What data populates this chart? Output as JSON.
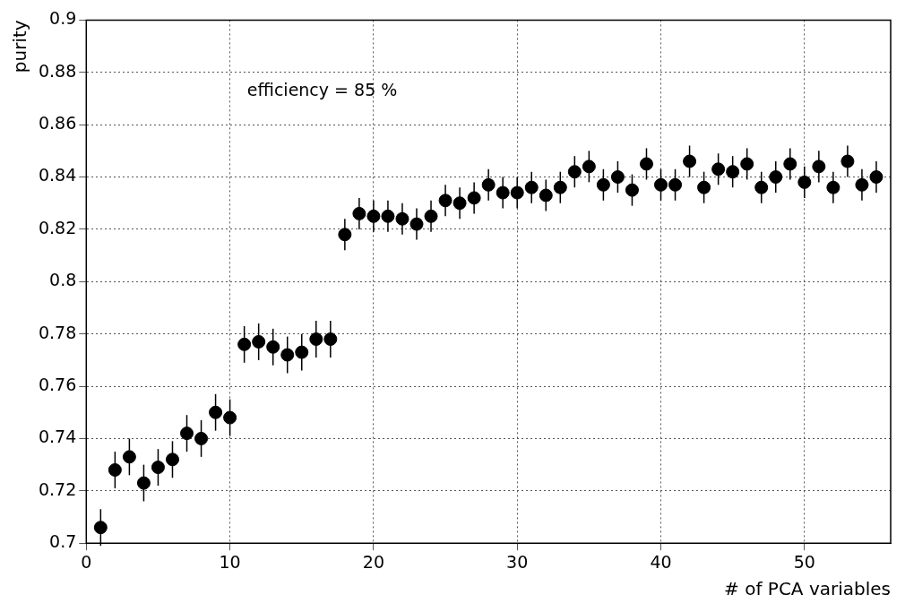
{
  "chart_data": {
    "type": "scatter",
    "xlabel": "# of PCA variables",
    "ylabel": "purity",
    "annotations": [
      "efficiency = 85 %"
    ],
    "x": [
      1,
      2,
      3,
      4,
      5,
      6,
      7,
      8,
      9,
      10,
      11,
      12,
      13,
      14,
      15,
      16,
      17,
      18,
      19,
      20,
      21,
      22,
      23,
      24,
      25,
      26,
      27,
      28,
      29,
      30,
      31,
      32,
      33,
      34,
      35,
      36,
      37,
      38,
      39,
      40,
      41,
      42,
      43,
      44,
      45,
      46,
      47,
      48,
      49,
      50,
      51,
      52,
      53,
      54,
      55
    ],
    "series": [
      {
        "color": "#000000",
        "values": [
          0.706,
          0.728,
          0.733,
          0.723,
          0.729,
          0.732,
          0.742,
          0.74,
          0.75,
          0.748,
          0.776,
          0.777,
          0.775,
          0.772,
          0.773,
          0.778,
          0.778,
          0.818,
          0.826,
          0.825,
          0.825,
          0.824,
          0.822,
          0.825,
          0.831,
          0.83,
          0.832,
          0.837,
          0.834,
          0.834,
          0.836,
          0.833,
          0.836,
          0.842,
          0.844,
          0.837,
          0.84,
          0.835,
          0.845,
          0.837,
          0.837,
          0.846,
          0.836,
          0.843,
          0.842,
          0.845,
          0.836,
          0.84,
          0.845,
          0.838,
          0.844,
          0.836,
          0.846,
          0.837,
          0.84
        ],
        "errors": [
          0.007,
          0.007,
          0.007,
          0.007,
          0.007,
          0.007,
          0.007,
          0.007,
          0.007,
          0.007,
          0.007,
          0.007,
          0.007,
          0.007,
          0.007,
          0.007,
          0.007,
          0.006,
          0.006,
          0.006,
          0.006,
          0.006,
          0.006,
          0.006,
          0.006,
          0.006,
          0.006,
          0.006,
          0.006,
          0.006,
          0.006,
          0.006,
          0.006,
          0.006,
          0.006,
          0.006,
          0.006,
          0.006,
          0.006,
          0.006,
          0.006,
          0.006,
          0.006,
          0.006,
          0.006,
          0.006,
          0.006,
          0.006,
          0.006,
          0.006,
          0.006,
          0.006,
          0.006,
          0.006,
          0.006
        ]
      }
    ],
    "xlim": [
      0,
      56
    ],
    "xticks": [
      0,
      10,
      20,
      30,
      40,
      50
    ],
    "ylim": [
      0.7,
      0.9
    ],
    "yticks": [
      0.7,
      0.72,
      0.74,
      0.76,
      0.78,
      0.8,
      0.82,
      0.84,
      0.86,
      0.88,
      0.9
    ],
    "grid": true,
    "marker": "circle",
    "legend": false
  }
}
